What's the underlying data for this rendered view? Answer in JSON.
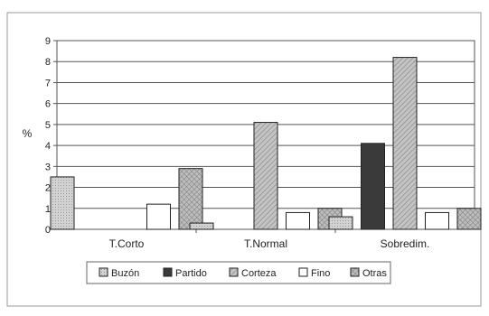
{
  "chart_data": {
    "type": "bar",
    "categories": [
      "T.Corto",
      "T.Normal",
      "Sobredim."
    ],
    "series": [
      {
        "name": "Buzón",
        "values": [
          2.5,
          0.3,
          0.6
        ],
        "color": "#c8c8c8",
        "pattern": "dots"
      },
      {
        "name": "Partido",
        "values": [
          0.0,
          0.0,
          4.1
        ],
        "color": "#3a3a3a",
        "pattern": "solid"
      },
      {
        "name": "Corteza",
        "values": [
          0.0,
          5.1,
          8.2
        ],
        "color": "#b4b4b4",
        "pattern": "hatch"
      },
      {
        "name": "Fino",
        "values": [
          1.2,
          0.8,
          0.8
        ],
        "color": "#ffffff",
        "pattern": "solid"
      },
      {
        "name": "Otras",
        "values": [
          2.9,
          1.0,
          1.0
        ],
        "color": "#a8a8a8",
        "pattern": "crosshatch"
      }
    ],
    "yticks": [
      "0",
      "1",
      "2",
      "3",
      "4",
      "5",
      "6",
      "7",
      "8",
      "9"
    ],
    "ylim": [
      0,
      9
    ],
    "ylabel": "%",
    "xlabel": "",
    "title": "",
    "grid": true,
    "legend_position": "bottom"
  }
}
